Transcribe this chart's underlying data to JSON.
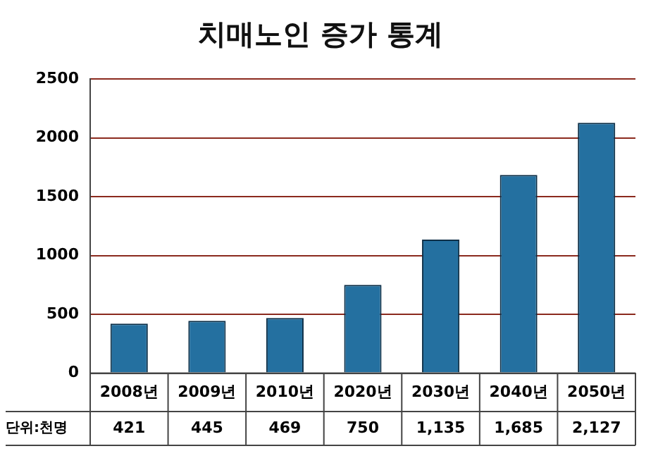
{
  "chart_data": {
    "type": "bar",
    "title": "치매노인 증가 통계",
    "categories": [
      "2008년",
      "2009년",
      "2010년",
      "2020년",
      "2030년",
      "2040년",
      "2050년"
    ],
    "values": [
      421,
      445,
      469,
      750,
      1135,
      1685,
      2127
    ],
    "value_labels": [
      "421",
      "445",
      "469",
      "750",
      "1,135",
      "1,685",
      "2,127"
    ],
    "color": "#2470a0",
    "ylim": [
      0,
      2500
    ],
    "yticks": [
      0,
      500,
      1000,
      1500,
      2000,
      2500
    ],
    "grid": "y",
    "annotations": [
      "단위:천명"
    ]
  }
}
